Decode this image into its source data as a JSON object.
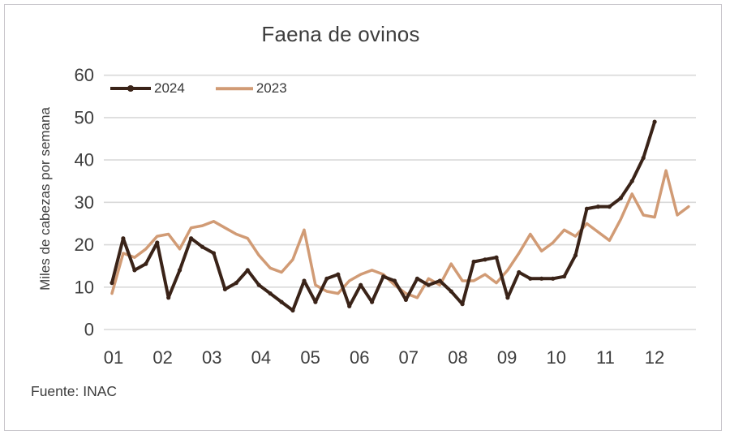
{
  "chart_data": {
    "type": "line",
    "title": "Faena de ovinos",
    "xlabel": "",
    "ylabel": "Miles de cabezas por semana",
    "x_unit": "semana del año (etiquetas de eje = mes)",
    "ylim": [
      0,
      60
    ],
    "yticks": [
      0,
      10,
      20,
      30,
      40,
      50,
      60
    ],
    "xticks": [
      "01",
      "02",
      "03",
      "04",
      "05",
      "06",
      "07",
      "08",
      "09",
      "10",
      "11",
      "12"
    ],
    "grid": "horizontal",
    "legend_position": "top-left",
    "source": "Fuente: INAC",
    "colors": {
      "series_2024": "#3a2318",
      "series_2023": "#d19b75",
      "gridline": "#d9d9d9",
      "text": "#3d3d3d",
      "frame_border": "#c9c6cc"
    },
    "series": [
      {
        "name": "2024",
        "color": "#3a2318",
        "marker": true,
        "values": [
          11,
          21.5,
          14,
          15.5,
          20.5,
          7.5,
          14,
          21.5,
          19.5,
          18,
          9.5,
          11,
          14,
          10.5,
          8.5,
          6.5,
          4.5,
          11.5,
          6.5,
          12,
          13,
          5.5,
          10.5,
          6.5,
          12.5,
          11.5,
          7,
          12,
          10.5,
          11.5,
          9,
          6,
          16,
          16.5,
          17,
          7.5,
          13.5,
          12,
          12,
          12,
          12.5,
          17.5,
          28.5,
          29,
          29,
          31,
          35,
          40.5,
          49
        ]
      },
      {
        "name": "2023",
        "color": "#d19b75",
        "marker": false,
        "values": [
          8.5,
          18,
          17,
          19,
          22,
          22.5,
          19,
          24,
          24.5,
          25.5,
          24,
          22.5,
          21.5,
          17.5,
          14.5,
          13.5,
          16.5,
          23.5,
          10.5,
          9,
          8.5,
          11.5,
          13,
          14,
          13,
          10.5,
          8.5,
          7.5,
          12,
          10.5,
          15.5,
          11.5,
          11.5,
          13,
          11,
          14,
          18,
          22.5,
          18.5,
          20.5,
          23.5,
          22,
          25,
          23,
          21,
          26,
          32,
          27,
          26.5,
          37.5,
          27,
          29
        ]
      }
    ]
  }
}
